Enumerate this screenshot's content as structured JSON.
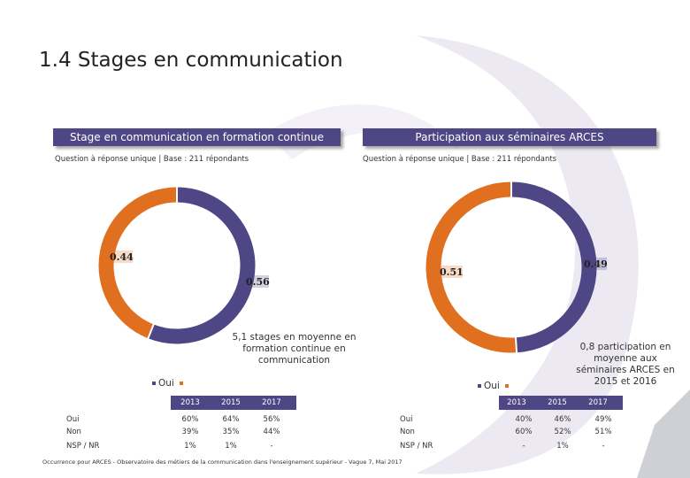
{
  "slide": {
    "title": "1.4 Stages en communication",
    "footer": "Occurrence pour ARCES - Observatoire des métiers de la communication dans l'enseignement supérieur - Vague 7, Mai 2017"
  },
  "colors": {
    "purple": "#4e4685",
    "orange": "#e07020",
    "watermark": "#ece9f3"
  },
  "left_panel": {
    "banner": "Stage en communication en formation continue",
    "subtitle": "Question à réponse unique | Base : 211 répondants",
    "callout": "5,1 stages en moyenne en formation continue en communication",
    "legend_label": "Oui",
    "table": {
      "years": [
        "2013",
        "2015",
        "2017"
      ],
      "rows": [
        {
          "label": "Oui",
          "values": [
            "60%",
            "64%",
            "56%"
          ]
        },
        {
          "label": "Non",
          "values": [
            "39%",
            "35%",
            "44%"
          ]
        },
        {
          "label": "NSP / NR",
          "values": [
            "1%",
            "1%",
            "-"
          ]
        }
      ]
    }
  },
  "right_panel": {
    "banner": "Participation aux séminaires ARCES",
    "subtitle": "Question à réponse unique | Base : 211 répondants",
    "callout": "0,8 participation en moyenne aux séminaires ARCES en 2015 et 2016",
    "legend_label": "Oui",
    "table": {
      "years": [
        "2013",
        "2015",
        "2017"
      ],
      "rows": [
        {
          "label": "Oui",
          "values": [
            "40%",
            "46%",
            "49%"
          ]
        },
        {
          "label": "Non",
          "values": [
            "60%",
            "52%",
            "51%"
          ]
        },
        {
          "label": "NSP / NR",
          "values": [
            "-",
            "1%",
            "-"
          ]
        }
      ]
    }
  },
  "chart_data": [
    {
      "type": "pie",
      "categories": [
        "Oui",
        "Non"
      ],
      "values": [
        0.56,
        0.44
      ],
      "labels": [
        "0.56",
        "0.44"
      ],
      "colors": [
        "#4e4685",
        "#e07020"
      ]
    },
    {
      "type": "pie",
      "categories": [
        "Oui",
        "Non"
      ],
      "values": [
        0.49,
        0.51
      ],
      "labels": [
        "0.49",
        "0.51"
      ],
      "colors": [
        "#4e4685",
        "#e07020"
      ]
    }
  ]
}
